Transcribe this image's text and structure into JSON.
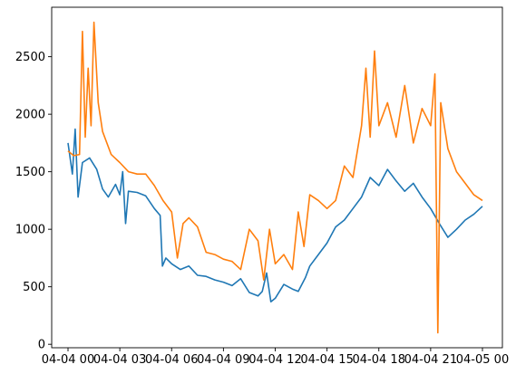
{
  "chart_data": {
    "type": "line",
    "title": "",
    "xlabel": "",
    "ylabel": "",
    "x_ticks": [
      "04-04 00",
      "04-04 03",
      "04-04 06",
      "04-04 09",
      "04-04 12",
      "04-04 15",
      "04-04 18",
      "04-04 21",
      "04-05 00"
    ],
    "y_ticks": [
      0,
      500,
      1000,
      1500,
      2000,
      2500
    ],
    "xlim": [
      "04-04 00",
      "04-05 00"
    ],
    "ylim": [
      -30,
      2930
    ],
    "grid": false,
    "legend": "none",
    "series": [
      {
        "color": "#1f77b4",
        "points": [
          [
            "04-04 00:00",
            1750
          ],
          [
            "04-04 00:15",
            1480
          ],
          [
            "04-04 00:25",
            1870
          ],
          [
            "04-04 00:35",
            1280
          ],
          [
            "04-04 00:50",
            1580
          ],
          [
            "04-04 01:15",
            1620
          ],
          [
            "04-04 01:40",
            1520
          ],
          [
            "04-04 02:00",
            1350
          ],
          [
            "04-04 02:20",
            1280
          ],
          [
            "04-04 02:45",
            1390
          ],
          [
            "04-04 03:00",
            1300
          ],
          [
            "04-04 03:10",
            1500
          ],
          [
            "04-04 03:20",
            1050
          ],
          [
            "04-04 03:30",
            1330
          ],
          [
            "04-04 04:00",
            1320
          ],
          [
            "04-04 04:30",
            1290
          ],
          [
            "04-04 05:00",
            1180
          ],
          [
            "04-04 05:20",
            1120
          ],
          [
            "04-04 05:28",
            680
          ],
          [
            "04-04 05:40",
            750
          ],
          [
            "04-04 06:00",
            700
          ],
          [
            "04-04 06:30",
            650
          ],
          [
            "04-04 07:00",
            680
          ],
          [
            "04-04 07:30",
            600
          ],
          [
            "04-04 08:00",
            590
          ],
          [
            "04-04 08:30",
            560
          ],
          [
            "04-04 09:00",
            540
          ],
          [
            "04-04 09:30",
            510
          ],
          [
            "04-04 10:00",
            570
          ],
          [
            "04-04 10:30",
            450
          ],
          [
            "04-04 11:00",
            420
          ],
          [
            "04-04 11:15",
            460
          ],
          [
            "04-04 11:30",
            620
          ],
          [
            "04-04 11:45",
            370
          ],
          [
            "04-04 12:00",
            400
          ],
          [
            "04-04 12:30",
            520
          ],
          [
            "04-04 13:00",
            480
          ],
          [
            "04-04 13:20",
            460
          ],
          [
            "04-04 13:45",
            580
          ],
          [
            "04-04 14:00",
            680
          ],
          [
            "04-04 14:30",
            780
          ],
          [
            "04-04 15:00",
            880
          ],
          [
            "04-04 15:30",
            1020
          ],
          [
            "04-04 16:00",
            1080
          ],
          [
            "04-04 16:30",
            1180
          ],
          [
            "04-04 17:00",
            1280
          ],
          [
            "04-04 17:30",
            1450
          ],
          [
            "04-04 18:00",
            1380
          ],
          [
            "04-04 18:30",
            1520
          ],
          [
            "04-04 19:00",
            1420
          ],
          [
            "04-04 19:30",
            1330
          ],
          [
            "04-04 20:00",
            1400
          ],
          [
            "04-04 20:30",
            1280
          ],
          [
            "04-04 21:00",
            1180
          ],
          [
            "04-04 21:30",
            1050
          ],
          [
            "04-04 22:00",
            930
          ],
          [
            "04-04 22:30",
            1000
          ],
          [
            "04-04 23:00",
            1080
          ],
          [
            "04-04 23:30",
            1130
          ],
          [
            "04-05 00:00",
            1200
          ]
        ]
      },
      {
        "color": "#ff7f0e",
        "points": [
          [
            "04-04 00:00",
            1680
          ],
          [
            "04-04 00:20",
            1640
          ],
          [
            "04-04 00:40",
            1650
          ],
          [
            "04-04 00:50",
            2720
          ],
          [
            "04-04 01:00",
            1800
          ],
          [
            "04-04 01:10",
            2400
          ],
          [
            "04-04 01:20",
            1900
          ],
          [
            "04-04 01:30",
            2800
          ],
          [
            "04-04 01:45",
            2100
          ],
          [
            "04-04 02:00",
            1850
          ],
          [
            "04-04 02:30",
            1650
          ],
          [
            "04-04 03:00",
            1580
          ],
          [
            "04-04 03:30",
            1500
          ],
          [
            "04-04 04:00",
            1480
          ],
          [
            "04-04 04:30",
            1480
          ],
          [
            "04-04 05:00",
            1380
          ],
          [
            "04-04 05:30",
            1250
          ],
          [
            "04-04 06:00",
            1150
          ],
          [
            "04-04 06:20",
            750
          ],
          [
            "04-04 06:40",
            1050
          ],
          [
            "04-04 07:00",
            1100
          ],
          [
            "04-04 07:30",
            1020
          ],
          [
            "04-04 08:00",
            800
          ],
          [
            "04-04 08:30",
            780
          ],
          [
            "04-04 09:00",
            740
          ],
          [
            "04-04 09:30",
            720
          ],
          [
            "04-04 10:00",
            650
          ],
          [
            "04-04 10:30",
            1000
          ],
          [
            "04-04 11:00",
            900
          ],
          [
            "04-04 11:20",
            560
          ],
          [
            "04-04 11:40",
            1000
          ],
          [
            "04-04 12:00",
            700
          ],
          [
            "04-04 12:30",
            780
          ],
          [
            "04-04 13:00",
            650
          ],
          [
            "04-04 13:20",
            1150
          ],
          [
            "04-04 13:40",
            850
          ],
          [
            "04-04 14:00",
            1300
          ],
          [
            "04-04 14:30",
            1250
          ],
          [
            "04-04 15:00",
            1180
          ],
          [
            "04-04 15:30",
            1250
          ],
          [
            "04-04 16:00",
            1550
          ],
          [
            "04-04 16:30",
            1450
          ],
          [
            "04-04 17:00",
            1900
          ],
          [
            "04-04 17:15",
            2400
          ],
          [
            "04-04 17:30",
            1800
          ],
          [
            "04-04 17:45",
            2550
          ],
          [
            "04-04 18:00",
            1900
          ],
          [
            "04-04 18:30",
            2100
          ],
          [
            "04-04 19:00",
            1800
          ],
          [
            "04-04 19:30",
            2250
          ],
          [
            "04-04 20:00",
            1750
          ],
          [
            "04-04 20:30",
            2050
          ],
          [
            "04-04 21:00",
            1900
          ],
          [
            "04-04 21:15",
            2350
          ],
          [
            "04-04 21:25",
            100
          ],
          [
            "04-04 21:35",
            2100
          ],
          [
            "04-04 22:00",
            1700
          ],
          [
            "04-04 22:30",
            1500
          ],
          [
            "04-04 23:00",
            1400
          ],
          [
            "04-04 23:30",
            1300
          ],
          [
            "04-05 00:00",
            1250
          ]
        ]
      }
    ]
  }
}
